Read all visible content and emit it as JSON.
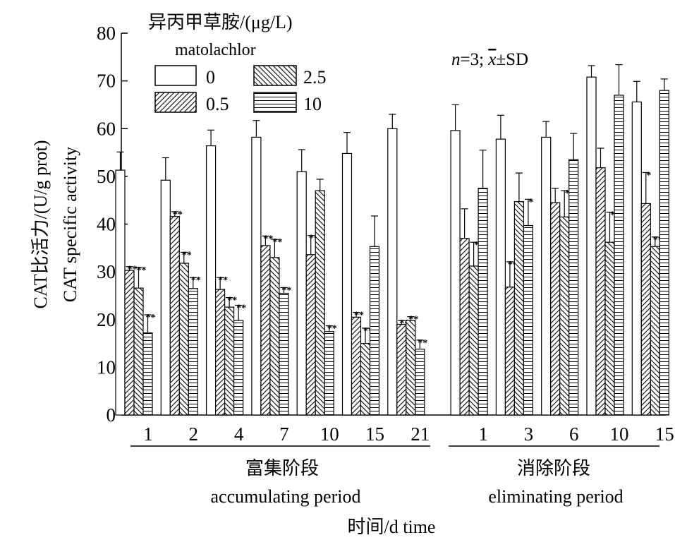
{
  "chart_data": {
    "type": "bar",
    "title": "",
    "ylabel_cn": "CAT比活力/(U/g prot)",
    "ylabel_en": "CAT specific activity",
    "xlabel": "时间/d time",
    "ylim": [
      0,
      80
    ],
    "yticks": [
      "0",
      "10",
      "20",
      "30",
      "40",
      "50",
      "60",
      "70",
      "80"
    ],
    "legend": {
      "title_cn": "异丙甲草胺/(μg/L)",
      "title_en": "matolachlor",
      "placement": "top-left",
      "entries": [
        "0",
        "0.5",
        "2.5",
        "10"
      ]
    },
    "annotation": {
      "n": "n",
      "eq": "=3; ",
      "x": "x",
      "pm": "±SD"
    },
    "groups": [
      {
        "label_cn": "富集阶段",
        "label_en": "accumulating period",
        "categories": [
          "1",
          "2",
          "4",
          "7",
          "10",
          "15",
          "21"
        ]
      },
      {
        "label_cn": "消除阶段",
        "label_en": "eliminating period",
        "categories": [
          "1",
          "3",
          "6",
          "10",
          "15"
        ]
      }
    ],
    "series": [
      {
        "name": "0",
        "pattern": "blank",
        "values": [
          51.3,
          49.2,
          56.4,
          58.2,
          51.0,
          54.8,
          60.0,
          59.6,
          57.8,
          58.2,
          70.8,
          65.6
        ],
        "errors": [
          3.8,
          4.7,
          3.3,
          3.5,
          4.6,
          4.4,
          3.0,
          5.4,
          5.0,
          3.3,
          2.4,
          4.3
        ]
      },
      {
        "name": "0.5",
        "pattern": "diagonal",
        "values": [
          30.3,
          41.6,
          26.3,
          35.5,
          33.6,
          20.5,
          19.0,
          37.0,
          26.8,
          44.5,
          51.8,
          44.3
        ],
        "errors": [
          0.8,
          1.0,
          2.5,
          2.0,
          4.0,
          1.0,
          0.8,
          6.2,
          5.3,
          3.0,
          4.1,
          6.5
        ]
      },
      {
        "name": "2.5",
        "pattern": "crosshatch",
        "values": [
          26.6,
          31.8,
          22.6,
          33.0,
          47.0,
          15.0,
          19.8,
          31.2,
          44.7,
          41.5,
          36.2,
          35.3
        ],
        "errors": [
          4.3,
          2.3,
          2.0,
          3.8,
          2.4,
          3.2,
          0.8,
          5.0,
          6.0,
          5.5,
          6.3,
          2.0
        ]
      },
      {
        "name": "10",
        "pattern": "horizontal",
        "values": [
          17.2,
          26.5,
          19.8,
          25.5,
          17.5,
          35.3,
          13.8,
          47.5,
          39.7,
          53.5,
          67.0,
          68.0
        ],
        "errors": [
          3.8,
          2.3,
          3.2,
          1.2,
          1.2,
          6.4,
          1.9,
          8.0,
          5.5,
          5.5,
          6.4,
          2.4
        ]
      }
    ],
    "significance": [
      [
        "",
        "",
        "",
        "",
        "",
        "",
        "",
        "",
        "",
        "",
        "",
        ""
      ],
      [
        "**",
        "**",
        "**",
        "**",
        "**",
        "**",
        "**",
        "",
        "**",
        "",
        "",
        "*"
      ],
      [
        "**",
        "**",
        "**",
        "**",
        "",
        "**",
        "**",
        "*",
        "",
        "*",
        "*",
        "**"
      ],
      [
        "**",
        "**",
        "**",
        "**",
        "**",
        "",
        "**",
        "",
        "*",
        "",
        "",
        ""
      ]
    ],
    "grid": false
  }
}
